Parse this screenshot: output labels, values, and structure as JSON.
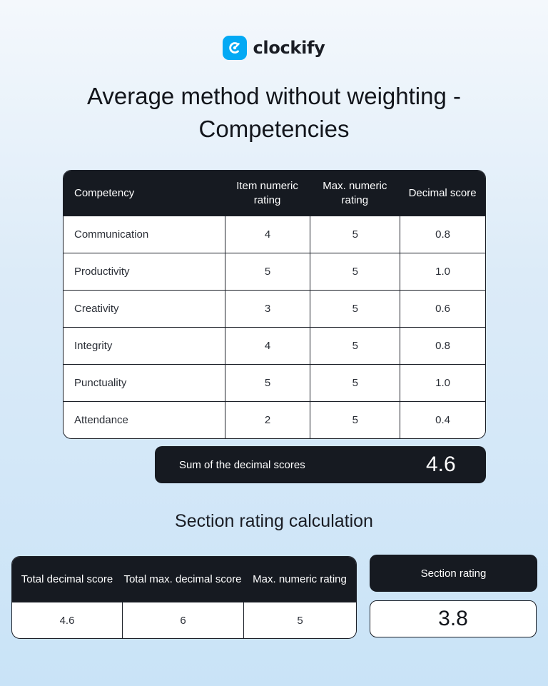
{
  "brand": {
    "name": "clockify",
    "accent": "#03a9f4"
  },
  "title": {
    "line1": "Average method without weighting -",
    "line2": "Competencies"
  },
  "competency_table": {
    "headers": [
      "Competency",
      "Item numeric rating",
      "Max. numeric rating",
      "Decimal score"
    ],
    "rows": [
      [
        "Communication",
        "4",
        "5",
        "0.8"
      ],
      [
        "Productivity",
        "5",
        "5",
        "1.0"
      ],
      [
        "Creativity",
        "3",
        "5",
        "0.6"
      ],
      [
        "Integrity",
        "4",
        "5",
        "0.8"
      ],
      [
        "Punctuality",
        "5",
        "5",
        "1.0"
      ],
      [
        "Attendance",
        "2",
        "5",
        "0.4"
      ]
    ]
  },
  "sum": {
    "label": "Sum of the decimal scores",
    "value": "4.6"
  },
  "section": {
    "heading": "Section rating calculation",
    "headers": [
      "Total decimal score",
      "Total max. decimal score",
      "Max. numeric rating"
    ],
    "values": [
      "4.6",
      "6",
      "5"
    ],
    "rating_label": "Section rating",
    "rating_value": "3.8"
  },
  "colors": {
    "dark": "#161a21",
    "background_top": "#f4f8fc",
    "background_bottom": "#c9e3f7"
  }
}
